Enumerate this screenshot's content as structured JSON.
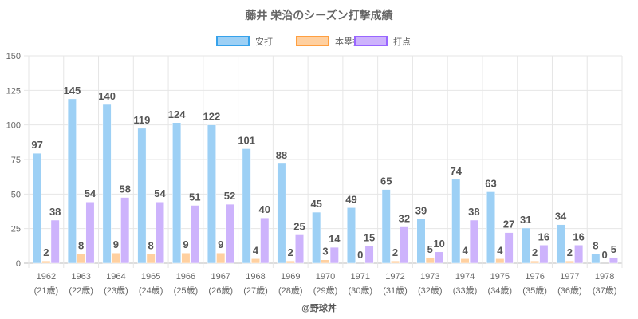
{
  "chart_data": {
    "type": "bar",
    "title": "藤井 栄治のシーズン打撃成績",
    "categories": [
      "1962",
      "1963",
      "1964",
      "1965",
      "1966",
      "1967",
      "1968",
      "1969",
      "1970",
      "1971",
      "1972",
      "1973",
      "1974",
      "1975",
      "1976",
      "1977",
      "1978"
    ],
    "category_sublabels": [
      "(21歳)",
      "(22歳)",
      "(23歳)",
      "(24歳)",
      "(25歳)",
      "(26歳)",
      "(27歳)",
      "(28歳)",
      "(29歳)",
      "(30歳)",
      "(31歳)",
      "(32歳)",
      "(33歳)",
      "(34歳)",
      "(35歳)",
      "(36歳)",
      "(37歳)"
    ],
    "series": [
      {
        "name": "安打",
        "color": "#9dd0f5",
        "border": "#36a2eb",
        "values": [
          97,
          145,
          140,
          119,
          124,
          122,
          101,
          88,
          45,
          49,
          65,
          39,
          74,
          63,
          31,
          34,
          8
        ]
      },
      {
        "name": "本塁打",
        "color": "#ffd0a0",
        "border": "#ff9f40",
        "values": [
          2,
          8,
          9,
          8,
          9,
          9,
          4,
          2,
          3,
          0,
          2,
          5,
          4,
          4,
          2,
          2,
          0
        ]
      },
      {
        "name": "打点",
        "color": "#cdb3fc",
        "border": "#9966ff",
        "values": [
          38,
          54,
          58,
          54,
          51,
          52,
          40,
          25,
          14,
          15,
          32,
          10,
          38,
          27,
          16,
          16,
          5
        ]
      }
    ],
    "yticks": [
      "0",
      "25",
      "50",
      "75",
      "100",
      "125",
      "150"
    ],
    "ylim": [
      0,
      150
    ],
    "grid": true,
    "legend_position": "top",
    "xlabel": "",
    "ylabel": "",
    "credit": "@野球丼"
  }
}
